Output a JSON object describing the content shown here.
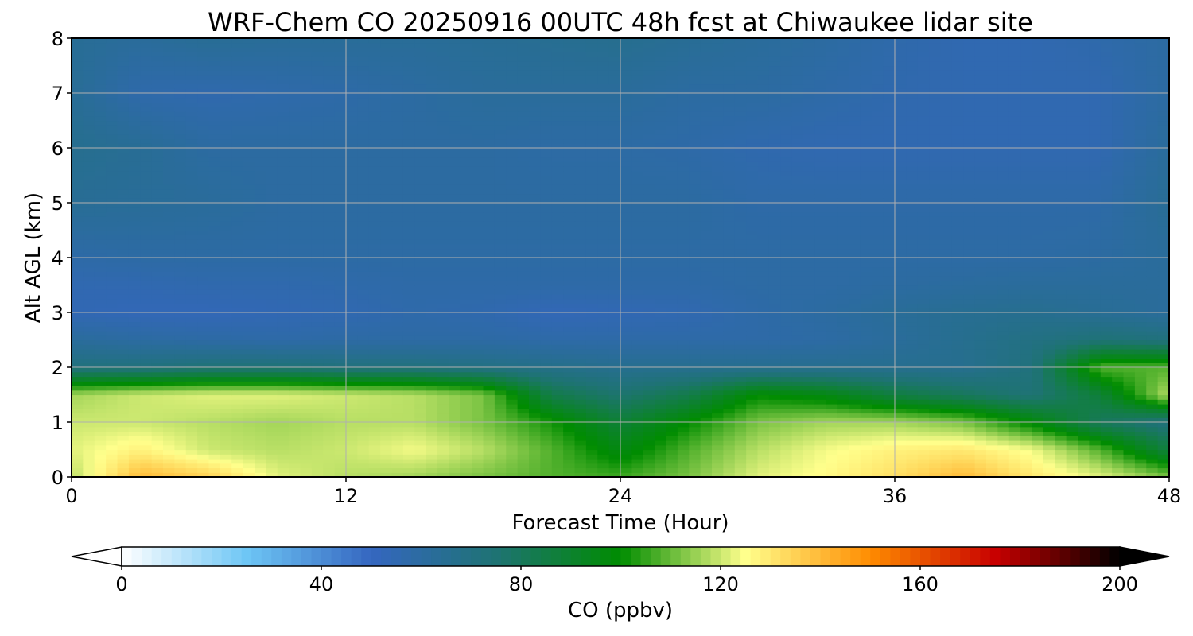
{
  "chart_data": {
    "type": "heatmap",
    "title": "WRF-Chem CO  20250916 00UTC 48h fcst at Chiwaukee lidar site",
    "xlabel": "Forecast Time (Hour)",
    "ylabel": "Alt AGL (km)",
    "xlim": [
      0,
      48
    ],
    "ylim": [
      0,
      8
    ],
    "x_ticks": [
      "0",
      "12",
      "24",
      "36",
      "48"
    ],
    "y_ticks": [
      "0",
      "1",
      "2",
      "3",
      "4",
      "5",
      "6",
      "7",
      "8"
    ],
    "grid": true,
    "colorbar": {
      "label": "CO  (ppbv)",
      "range": [
        0,
        200
      ],
      "extend": "both",
      "ticks": [
        "0",
        "40",
        "80",
        "120",
        "160",
        "200"
      ],
      "colors": [
        "#ffffff",
        "#6ec6f5",
        "#3566c0",
        "#1e7373",
        "#008c00",
        "#ffff8c",
        "#ff8c00",
        "#c80000",
        "#000000"
      ]
    },
    "x": [
      0,
      3,
      6,
      9,
      12,
      15,
      18,
      21,
      24,
      27,
      30,
      33,
      36,
      39,
      42,
      45,
      48
    ],
    "y": [
      0,
      0.5,
      1,
      1.5,
      2,
      2.5,
      3,
      3.5,
      4,
      5,
      6,
      7,
      8
    ],
    "z": [
      [
        118,
        140,
        135,
        122,
        118,
        116,
        112,
        108,
        106,
        112,
        122,
        126,
        132,
        140,
        130,
        122,
        112
      ],
      [
        122,
        128,
        120,
        118,
        120,
        124,
        118,
        108,
        96,
        108,
        118,
        124,
        128,
        130,
        124,
        108,
        86
      ],
      [
        120,
        120,
        118,
        116,
        118,
        118,
        112,
        102,
        88,
        100,
        112,
        116,
        116,
        112,
        98,
        80,
        72
      ],
      [
        116,
        120,
        122,
        122,
        120,
        118,
        112,
        84,
        76,
        84,
        100,
        96,
        86,
        80,
        74,
        88,
        118
      ],
      [
        72,
        72,
        74,
        74,
        72,
        72,
        70,
        68,
        66,
        66,
        66,
        66,
        66,
        66,
        72,
        108,
        108
      ],
      [
        62,
        60,
        59,
        58,
        59,
        59,
        59,
        58,
        58,
        58,
        58,
        59,
        62,
        66,
        70,
        74,
        72
      ],
      [
        54,
        53,
        53,
        54,
        55,
        57,
        56,
        53,
        54,
        55,
        58,
        60,
        63,
        65,
        66,
        64,
        62
      ],
      [
        55,
        55,
        56,
        56,
        57,
        58,
        58,
        58,
        58,
        58,
        59,
        59,
        60,
        61,
        62,
        62,
        62
      ],
      [
        58,
        59,
        59,
        59,
        59,
        59,
        59,
        59,
        59,
        59,
        59,
        59,
        59,
        59,
        59,
        60,
        62
      ],
      [
        64,
        63,
        62,
        60,
        60,
        60,
        60,
        60,
        60,
        60,
        58,
        58,
        58,
        58,
        58,
        58,
        64
      ],
      [
        66,
        64,
        60,
        60,
        60,
        60,
        60,
        59,
        59,
        58,
        56,
        55,
        55,
        55,
        55,
        55,
        62
      ],
      [
        64,
        57,
        56,
        57,
        58,
        60,
        62,
        62,
        62,
        60,
        60,
        58,
        56,
        55,
        55,
        55,
        60
      ],
      [
        64,
        62,
        64,
        63,
        63,
        63,
        64,
        65,
        66,
        64,
        62,
        60,
        57,
        55,
        55,
        57,
        60
      ]
    ]
  }
}
